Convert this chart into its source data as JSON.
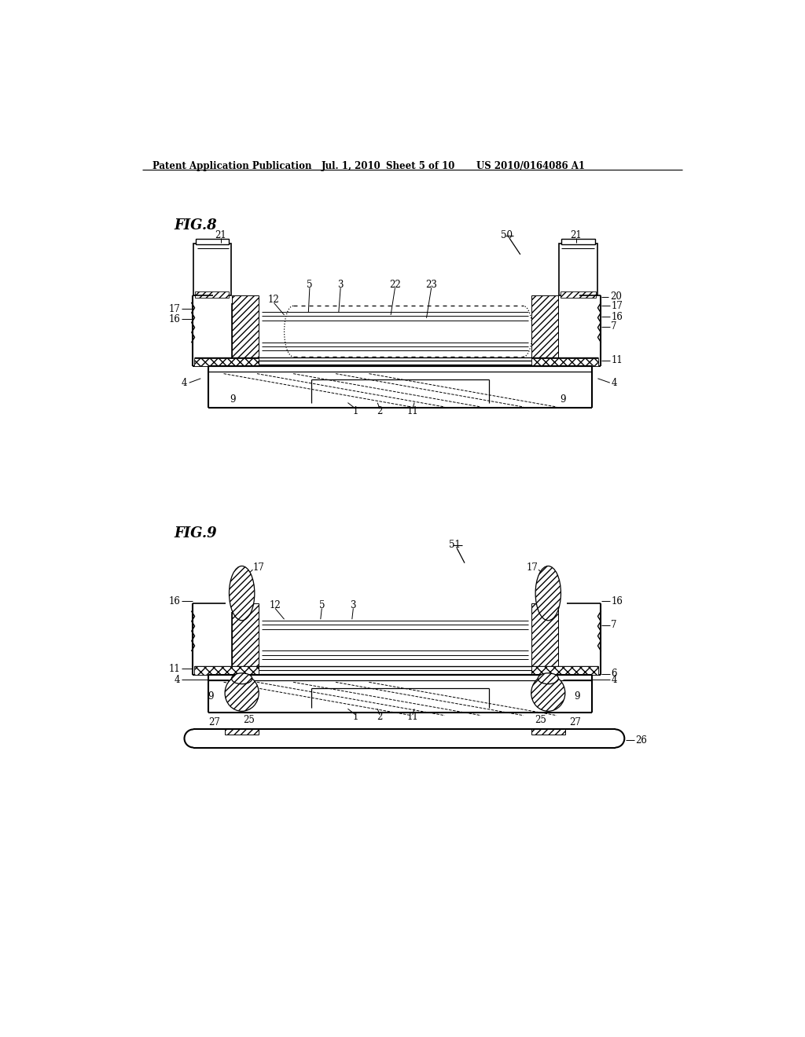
{
  "bg_color": "#ffffff",
  "header_text": "Patent Application Publication",
  "header_date": "Jul. 1, 2010",
  "header_sheet": "Sheet 5 of 10",
  "header_patent": "US 2010/0164086 A1",
  "fig8_label": "FIG.8",
  "fig9_label": "FIG.9"
}
